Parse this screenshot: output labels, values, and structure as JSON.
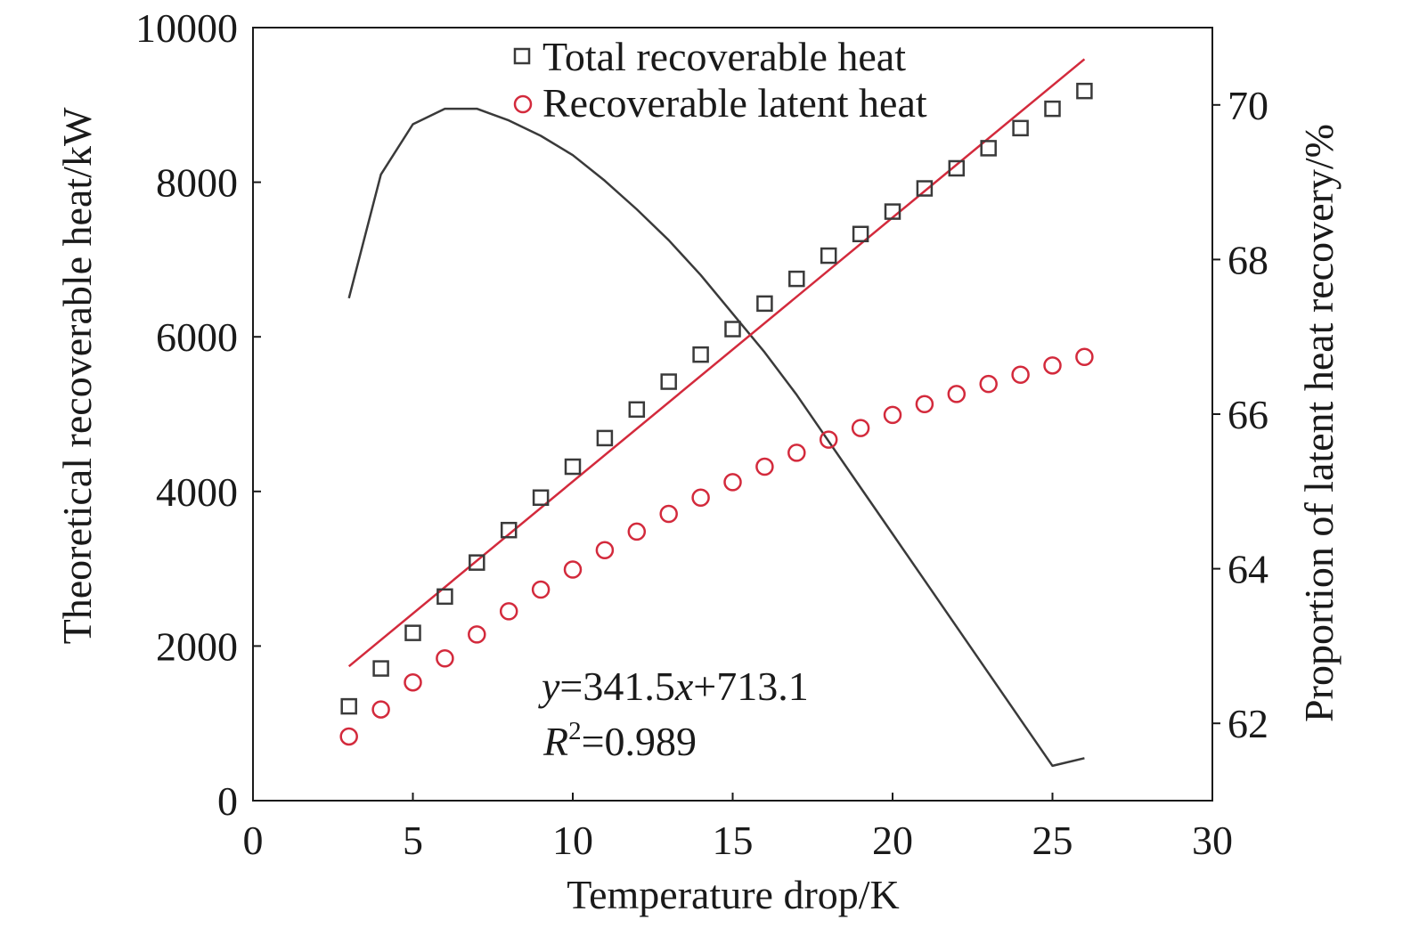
{
  "chart_data": {
    "type": "scatter",
    "xlabel": "Temperature drop/K",
    "ylabel": "Theoretical recoverable heat/kW",
    "y2label": "Proportion of latent heat recovery/%",
    "xlim": [
      0,
      30
    ],
    "ylim": [
      0,
      10000
    ],
    "y2lim": [
      61,
      71
    ],
    "xticks": [
      "0",
      "5",
      "10",
      "15",
      "20",
      "25",
      "30"
    ],
    "yticks": [
      "0",
      "2000",
      "4000",
      "6000",
      "8000",
      "10000"
    ],
    "y2ticks": [
      "62",
      "64",
      "66",
      "68",
      "70"
    ],
    "grid": false,
    "legend_position": "top",
    "x": [
      3,
      4,
      5,
      6,
      7,
      8,
      9,
      10,
      11,
      12,
      13,
      14,
      15,
      16,
      17,
      18,
      19,
      20,
      21,
      22,
      23,
      24,
      25,
      26
    ],
    "series": [
      {
        "name": "Total recoverable heat",
        "kind": "scatter",
        "marker": "square",
        "axis": "left",
        "color": "#3a3a3a",
        "values": [
          1220,
          1710,
          2170,
          2640,
          3080,
          3500,
          3920,
          4320,
          4690,
          5060,
          5420,
          5770,
          6100,
          6430,
          6750,
          7050,
          7330,
          7620,
          7920,
          8180,
          8440,
          8700,
          8950,
          9180
        ]
      },
      {
        "name": "Recoverable latent heat",
        "kind": "scatter",
        "marker": "circle",
        "axis": "left",
        "color": "#d32a3c",
        "values": [
          830,
          1180,
          1530,
          1840,
          2150,
          2450,
          2730,
          2990,
          3240,
          3480,
          3710,
          3920,
          4120,
          4320,
          4500,
          4670,
          4820,
          4990,
          5130,
          5260,
          5390,
          5510,
          5630,
          5740
        ]
      },
      {
        "kind": "line",
        "axis": "right",
        "color": "#3a3a3a",
        "values": [
          67.5,
          69.1,
          69.75,
          69.95,
          69.95,
          69.8,
          69.6,
          69.35,
          69.02,
          68.65,
          68.25,
          67.8,
          67.3,
          66.8,
          66.25,
          65.65,
          65.05,
          64.45,
          63.85,
          63.25,
          62.65,
          62.05,
          61.45,
          61.55
        ]
      },
      {
        "kind": "fit",
        "axis": "left",
        "color": "#d32a3c",
        "slope": 341.5,
        "intercept": 713.1,
        "x_range": [
          3,
          26
        ]
      }
    ],
    "annotations": [
      {
        "parts": [
          "y",
          "=341.5",
          "x",
          "+713.1"
        ]
      },
      {
        "parts": [
          "R",
          "2",
          "=0.989"
        ]
      }
    ]
  }
}
